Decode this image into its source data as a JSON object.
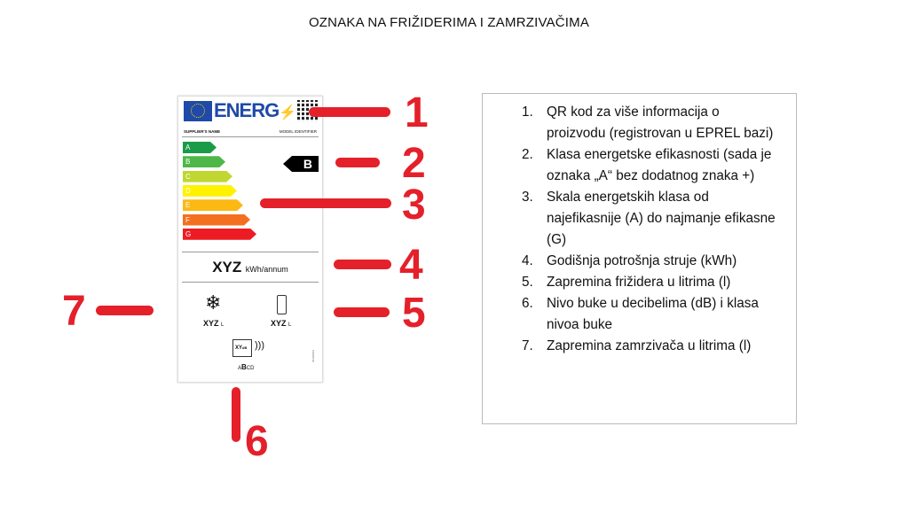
{
  "title": "OZNAKA NA FRIŽIDERIMA I ZAMRZIVAČIMA",
  "label": {
    "logo_text": "ENERG",
    "supplier": "SUPPLIER'S NAME",
    "model": "MODEL IDENTIFIER",
    "classes": [
      "A",
      "B",
      "C",
      "D",
      "E",
      "F",
      "G"
    ],
    "class_colors": [
      "#1a9b48",
      "#4db848",
      "#bfd730",
      "#fff200",
      "#fdb913",
      "#f37021",
      "#ed1c24"
    ],
    "current_class": "B",
    "consumption_value": "XYZ",
    "consumption_unit": "kWh/annum",
    "freezer_volume": "XYZ",
    "fridge_volume": "XYZ",
    "volume_unit": "L",
    "noise_value": "XY",
    "noise_unit": "dB",
    "noise_classes": [
      "A",
      "B",
      "C",
      "D"
    ],
    "regulation_code": "2019/2016"
  },
  "markers": [
    "1",
    "2",
    "3",
    "4",
    "5",
    "6",
    "7"
  ],
  "marker_color": "#e4202a",
  "notes": [
    {
      "n": "1.",
      "text": "QR kod za više informacija o proizvodu (registrovan u EPREL bazi)"
    },
    {
      "n": "2.",
      "text": "Klasa energetske efikasnosti (sada je oznaka „A“ bez dodatnog znaka +)"
    },
    {
      "n": "3.",
      "text": "Skala energetskih klasa od najefikasnije (A) do najmanje efikasne (G)"
    },
    {
      "n": "4.",
      "text": "Godišnja potrošnja struje (kWh)"
    },
    {
      "n": "5.",
      "text": "Zapremina frižidera u litrima (l)"
    },
    {
      "n": "6.",
      "text": "Nivo buke u decibelima (dB) i klasa nivoa buke"
    },
    {
      "n": "7.",
      "text": "Zapremina zamrzivača u litrima (l)"
    }
  ]
}
